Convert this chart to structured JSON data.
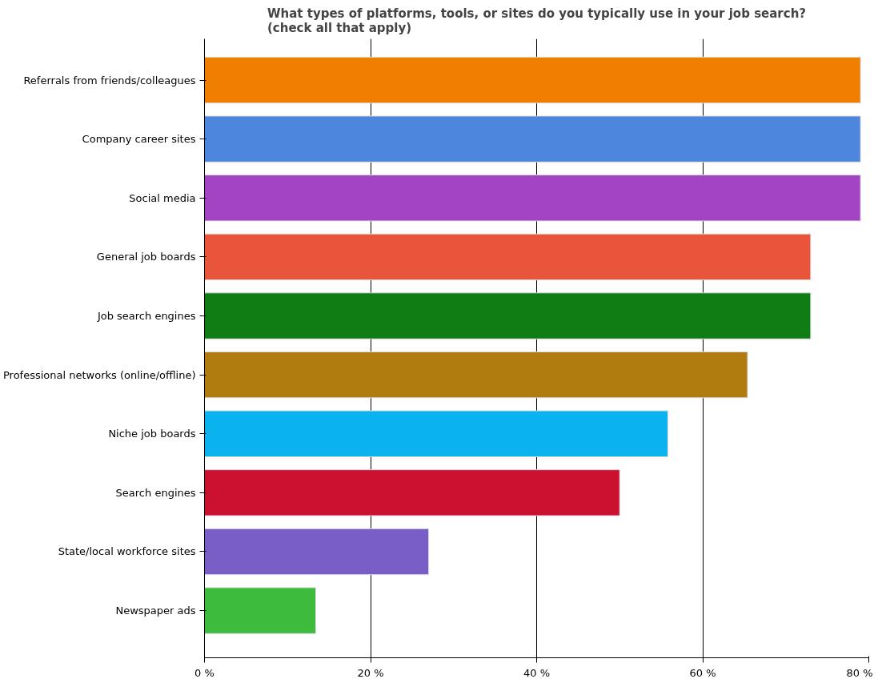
{
  "chart_data": {
    "type": "bar",
    "orientation": "horizontal",
    "title": "What types of platforms, tools, or sites do you typically use in your job search? (check all that apply)",
    "categories": [
      "Referrals from friends/colleagues",
      "Company career sites",
      "Social media",
      "General job boards",
      "Job search engines",
      "Professional networks (online/offline)",
      "Niche job boards",
      "Search engines",
      "State/local workforce sites",
      "Newspaper ads"
    ],
    "values": [
      79,
      79,
      79,
      73,
      73,
      65.4,
      55.8,
      50,
      27,
      13.4
    ],
    "colors": [
      "#f07f00",
      "#4d86dd",
      "#a244c4",
      "#e8553a",
      "#0f7d13",
      "#b07c10",
      "#0ab2ee",
      "#cc1030",
      "#7a5ec8",
      "#3cbb3c"
    ],
    "xlim": [
      0,
      80
    ],
    "xticks": [
      {
        "value": 0,
        "label": "0 %"
      },
      {
        "value": 20,
        "label": "20 %"
      },
      {
        "value": 40,
        "label": "40 %"
      },
      {
        "value": 60,
        "label": "60 %"
      },
      {
        "value": 80,
        "label": "80 %"
      }
    ],
    "grid": "x"
  }
}
